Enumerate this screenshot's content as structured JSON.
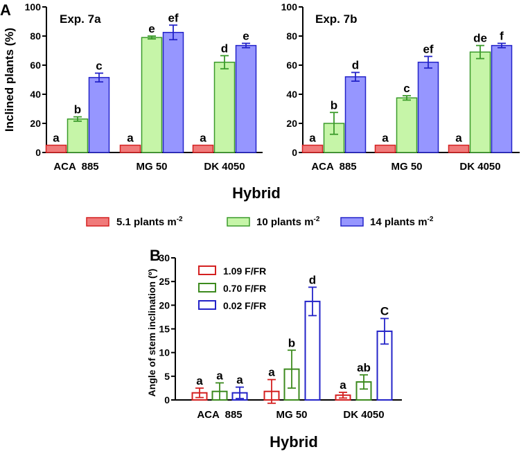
{
  "figure": {
    "panel_a_label": "A",
    "panel_b_label": "B"
  },
  "colors": {
    "red_fill": "#f07a7a",
    "red_stroke": "#d42020",
    "green_fill": "#c6f5a8",
    "green_stroke": "#3a9a2a",
    "blue_fill": "#9696ff",
    "blue_stroke": "#2323c8",
    "b_red": "#d42020",
    "b_green": "#3c8a1e",
    "b_blue": "#2323c8"
  },
  "legend_a": {
    "items": [
      {
        "text": "5.1 plants m",
        "sup": "-2",
        "color_key": "red"
      },
      {
        "text": "10 plants m",
        "sup": "-2",
        "color_key": "green"
      },
      {
        "text": "14 plants m",
        "sup": "-2",
        "color_key": "blue"
      }
    ]
  },
  "chart_data": [
    {
      "type": "bar",
      "panel": "A",
      "title": "Exp. 7a",
      "ylabel": "Inclined plants (%)",
      "xlabel": "Hybrid",
      "ylim": [
        0,
        100
      ],
      "yticks": [
        0,
        20,
        40,
        60,
        80,
        100
      ],
      "yticklabels": [
        "0",
        "20",
        "40",
        "60",
        "80",
        "100"
      ],
      "categories": [
        "ACA  885",
        "MG 50",
        "DK 4050"
      ],
      "series": [
        {
          "name": "5.1 plants m-2",
          "color_key": "red",
          "values": [
            5,
            5,
            5
          ],
          "errors": [
            0,
            0,
            0
          ],
          "letters": [
            "a",
            "a",
            "a"
          ]
        },
        {
          "name": "10 plants m-2",
          "color_key": "green",
          "values": [
            23,
            79,
            62
          ],
          "errors": [
            1.5,
            1,
            4.5
          ],
          "letters": [
            "b",
            "e",
            "d"
          ]
        },
        {
          "name": "14 plants m-2",
          "color_key": "blue",
          "values": [
            51.5,
            82.5,
            73.5
          ],
          "errors": [
            3,
            5,
            1.5
          ],
          "letters": [
            "c",
            "ef",
            "e"
          ]
        }
      ]
    },
    {
      "type": "bar",
      "panel": "A",
      "title": "Exp. 7b",
      "ylabel": "",
      "xlabel": "Hybrid",
      "ylim": [
        0,
        100
      ],
      "yticks": [
        0,
        20,
        40,
        60,
        80,
        100
      ],
      "yticklabels": [
        "0",
        "20",
        "40",
        "60",
        "80",
        "100"
      ],
      "categories": [
        "ACA  885",
        "MG 50",
        "DK 4050"
      ],
      "series": [
        {
          "name": "5.1 plants m-2",
          "color_key": "red",
          "values": [
            5,
            5,
            5
          ],
          "errors": [
            0,
            0,
            0
          ],
          "letters": [
            "a",
            "a",
            "a"
          ]
        },
        {
          "name": "10 plants m-2",
          "color_key": "green",
          "values": [
            20,
            37.5,
            69
          ],
          "errors": [
            7.5,
            1.5,
            4.5
          ],
          "letters": [
            "b",
            "c",
            "de"
          ]
        },
        {
          "name": "14 plants m-2",
          "color_key": "blue",
          "values": [
            52,
            62,
            73.5
          ],
          "errors": [
            3,
            4,
            1.5
          ],
          "letters": [
            "d",
            "ef",
            "f"
          ]
        }
      ]
    },
    {
      "type": "bar",
      "panel": "B",
      "title": "",
      "ylabel": "Angle of stem inclination (º)",
      "xlabel": "Hybrid",
      "ylim": [
        0,
        30
      ],
      "yticks": [
        0,
        5,
        10,
        15,
        20,
        25,
        30
      ],
      "yticklabels": [
        "0",
        "5",
        "10",
        "15",
        "20",
        "25",
        "30"
      ],
      "categories": [
        "ACA  885",
        "MG 50",
        "DK 4050"
      ],
      "legend": [
        {
          "text": "1.09 F/FR",
          "color_key": "b_red"
        },
        {
          "text": "0.70 F/FR",
          "color_key": "b_green"
        },
        {
          "text": "0.02 F/FR",
          "color_key": "b_blue"
        }
      ],
      "series": [
        {
          "name": "1.09 F/FR",
          "color_key": "b_red",
          "values": [
            1.5,
            1.8,
            1
          ],
          "errors": [
            1,
            2.5,
            0.6
          ],
          "letters": [
            "a",
            "a",
            "a"
          ]
        },
        {
          "name": "0.70 F/FR",
          "color_key": "b_green",
          "values": [
            1.8,
            6.5,
            3.8
          ],
          "errors": [
            1.8,
            4,
            1.5
          ],
          "letters": [
            "a",
            "b",
            "ab"
          ]
        },
        {
          "name": "0.02 F/FR",
          "color_key": "b_blue",
          "values": [
            1.5,
            20.8,
            14.5
          ],
          "errors": [
            1.2,
            3,
            2.7
          ],
          "letters": [
            "a",
            "d",
            "C"
          ]
        }
      ]
    }
  ]
}
